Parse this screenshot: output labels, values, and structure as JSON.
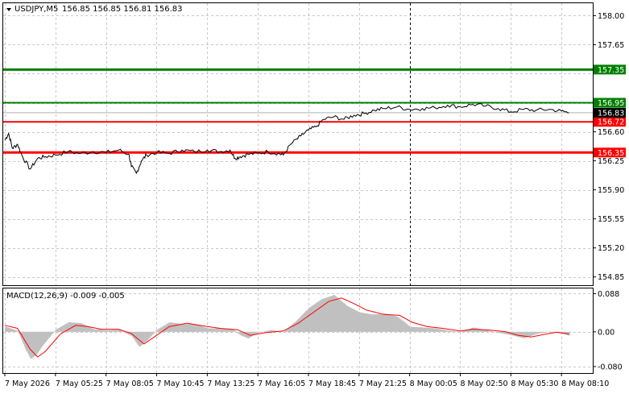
{
  "header": {
    "symbol_tf": "USDJPY,M5",
    "ohlc": "156.85 156.85 156.81 156.83"
  },
  "macd": {
    "title": "MACD(12,26,9) -0.009 -0.005",
    "ticks": [
      "0.088",
      "0.00",
      "-0.080"
    ],
    "tick_values": [
      0.088,
      0.0,
      -0.08
    ]
  },
  "colors": {
    "background": "#ffffff",
    "price_line": "#000000",
    "resistance": "#008000",
    "support": "#ff0000",
    "histogram": "#c0c0c0",
    "signal": "#ff0000",
    "grid": "#c8c8c8",
    "current_price_badge": "#000000"
  },
  "chart_data": {
    "type": "line",
    "symbol": "USDJPY",
    "timeframe": "M5",
    "ylim": [
      154.75,
      158.15
    ],
    "y_ticks": [
      158.0,
      157.65,
      157.3,
      156.95,
      156.6,
      156.25,
      155.9,
      155.55,
      155.2,
      154.85
    ],
    "y_tick_labels": [
      "158.00",
      "157.65",
      "156.95",
      "156.60",
      "156.25",
      "155.90",
      "155.55",
      "155.20",
      "154.85"
    ],
    "x_labels": [
      "7 May 2026",
      "7 May 05:25",
      "7 May 08:05",
      "7 May 10:45",
      "7 May 13:25",
      "7 May 16:05",
      "7 May 18:45",
      "7 May 21:25",
      "8 May 00:05",
      "8 May 02:50",
      "8 May 05:30",
      "8 May 08:10"
    ],
    "day_separator": "8 May 00:05",
    "current_price": 156.83,
    "levels": [
      {
        "value": 157.35,
        "label": "157.35",
        "color": "#008000"
      },
      {
        "value": 156.95,
        "label": "156.95",
        "color": "#008000"
      },
      {
        "value": 156.72,
        "label": "156.72",
        "color": "#ff0000"
      },
      {
        "value": 156.35,
        "label": "156.35",
        "color": "#ff0000"
      }
    ],
    "price_path": [
      [
        0,
        156.5
      ],
      [
        0.15,
        156.58
      ],
      [
        0.3,
        156.4
      ],
      [
        0.5,
        156.45
      ],
      [
        0.7,
        156.3
      ],
      [
        1.0,
        156.15
      ],
      [
        1.3,
        156.28
      ],
      [
        1.6,
        156.3
      ],
      [
        2.0,
        156.32
      ],
      [
        2.5,
        156.36
      ],
      [
        3.0,
        156.34
      ],
      [
        3.5,
        156.36
      ],
      [
        4.0,
        156.35
      ],
      [
        4.5,
        156.38
      ],
      [
        4.9,
        156.33
      ],
      [
        5.0,
        156.18
      ],
      [
        5.2,
        156.1
      ],
      [
        5.4,
        156.25
      ],
      [
        5.6,
        156.32
      ],
      [
        6.0,
        156.35
      ],
      [
        6.5,
        156.34
      ],
      [
        7.0,
        156.38
      ],
      [
        7.5,
        156.36
      ],
      [
        8.0,
        156.38
      ],
      [
        8.5,
        156.36
      ],
      [
        8.9,
        156.38
      ],
      [
        9.1,
        156.28
      ],
      [
        9.3,
        156.3
      ],
      [
        9.6,
        156.33
      ],
      [
        10.0,
        156.34
      ],
      [
        10.4,
        156.36
      ],
      [
        10.8,
        156.34
      ],
      [
        11.0,
        156.32
      ],
      [
        11.3,
        156.45
      ],
      [
        11.7,
        156.55
      ],
      [
        12.0,
        156.62
      ],
      [
        12.3,
        156.66
      ],
      [
        12.6,
        156.75
      ],
      [
        13.0,
        156.78
      ],
      [
        13.4,
        156.75
      ],
      [
        13.8,
        156.8
      ],
      [
        14.2,
        156.82
      ],
      [
        14.6,
        156.86
      ],
      [
        15.0,
        156.88
      ],
      [
        15.5,
        156.9
      ],
      [
        16.0,
        156.87
      ],
      [
        16.5,
        156.88
      ],
      [
        17.0,
        156.89
      ],
      [
        17.5,
        156.92
      ],
      [
        18.0,
        156.9
      ],
      [
        18.5,
        156.93
      ],
      [
        19.0,
        156.91
      ],
      [
        19.5,
        156.88
      ],
      [
        20.0,
        156.84
      ],
      [
        20.5,
        156.87
      ],
      [
        21.0,
        156.86
      ],
      [
        21.5,
        156.87
      ],
      [
        22.0,
        156.85
      ],
      [
        22.3,
        156.83
      ]
    ],
    "macd_path": [
      [
        0,
        0.012
      ],
      [
        0.2,
        0.008
      ],
      [
        0.5,
        0.002
      ],
      [
        0.8,
        -0.04
      ],
      [
        1.0,
        -0.062
      ],
      [
        1.2,
        -0.055
      ],
      [
        1.5,
        -0.03
      ],
      [
        2.0,
        0.005
      ],
      [
        2.5,
        0.022
      ],
      [
        3.0,
        0.02
      ],
      [
        3.5,
        0.006
      ],
      [
        4.0,
        0.004
      ],
      [
        4.5,
        0.005
      ],
      [
        5.0,
        -0.01
      ],
      [
        5.3,
        -0.035
      ],
      [
        5.6,
        -0.02
      ],
      [
        6.0,
        0.005
      ],
      [
        6.5,
        0.022
      ],
      [
        7.0,
        0.018
      ],
      [
        7.5,
        0.018
      ],
      [
        8.0,
        0.008
      ],
      [
        8.5,
        0.008
      ],
      [
        9.0,
        0.006
      ],
      [
        9.3,
        -0.008
      ],
      [
        9.6,
        -0.015
      ],
      [
        10.0,
        -0.002
      ],
      [
        10.5,
        0.004
      ],
      [
        11.0,
        0.0
      ],
      [
        11.5,
        0.025
      ],
      [
        12.0,
        0.055
      ],
      [
        12.5,
        0.075
      ],
      [
        13.0,
        0.085
      ],
      [
        13.5,
        0.06
      ],
      [
        14.0,
        0.045
      ],
      [
        14.5,
        0.04
      ],
      [
        15.0,
        0.042
      ],
      [
        15.5,
        0.035
      ],
      [
        16.0,
        0.012
      ],
      [
        16.5,
        0.01
      ],
      [
        17.0,
        0.008
      ],
      [
        17.5,
        0.003
      ],
      [
        18.0,
        0.0
      ],
      [
        18.5,
        0.01
      ],
      [
        19.0,
        0.004
      ],
      [
        19.5,
        -0.002
      ],
      [
        20.0,
        -0.008
      ],
      [
        20.5,
        -0.015
      ],
      [
        21.0,
        -0.005
      ],
      [
        21.5,
        0.0
      ],
      [
        22.0,
        -0.004
      ],
      [
        22.3,
        -0.009
      ]
    ],
    "signal_path": [
      [
        0,
        0.015
      ],
      [
        0.5,
        0.008
      ],
      [
        1.0,
        -0.04
      ],
      [
        1.3,
        -0.058
      ],
      [
        1.6,
        -0.045
      ],
      [
        2.2,
        -0.005
      ],
      [
        2.8,
        0.015
      ],
      [
        3.3,
        0.012
      ],
      [
        3.8,
        0.006
      ],
      [
        4.5,
        0.006
      ],
      [
        5.0,
        -0.004
      ],
      [
        5.5,
        -0.028
      ],
      [
        5.9,
        -0.012
      ],
      [
        6.5,
        0.012
      ],
      [
        7.2,
        0.02
      ],
      [
        7.8,
        0.014
      ],
      [
        8.5,
        0.008
      ],
      [
        9.2,
        0.005
      ],
      [
        9.7,
        -0.008
      ],
      [
        10.3,
        -0.002
      ],
      [
        11.0,
        0.002
      ],
      [
        11.6,
        0.02
      ],
      [
        12.2,
        0.045
      ],
      [
        12.8,
        0.07
      ],
      [
        13.3,
        0.078
      ],
      [
        13.8,
        0.065
      ],
      [
        14.3,
        0.05
      ],
      [
        15.0,
        0.04
      ],
      [
        15.6,
        0.038
      ],
      [
        16.1,
        0.022
      ],
      [
        16.7,
        0.012
      ],
      [
        17.3,
        0.008
      ],
      [
        18.0,
        0.002
      ],
      [
        18.5,
        0.006
      ],
      [
        19.2,
        0.004
      ],
      [
        19.8,
        0.0
      ],
      [
        20.3,
        -0.008
      ],
      [
        20.8,
        -0.012
      ],
      [
        21.3,
        -0.006
      ],
      [
        21.8,
        -0.001
      ],
      [
        22.3,
        -0.005
      ]
    ]
  }
}
